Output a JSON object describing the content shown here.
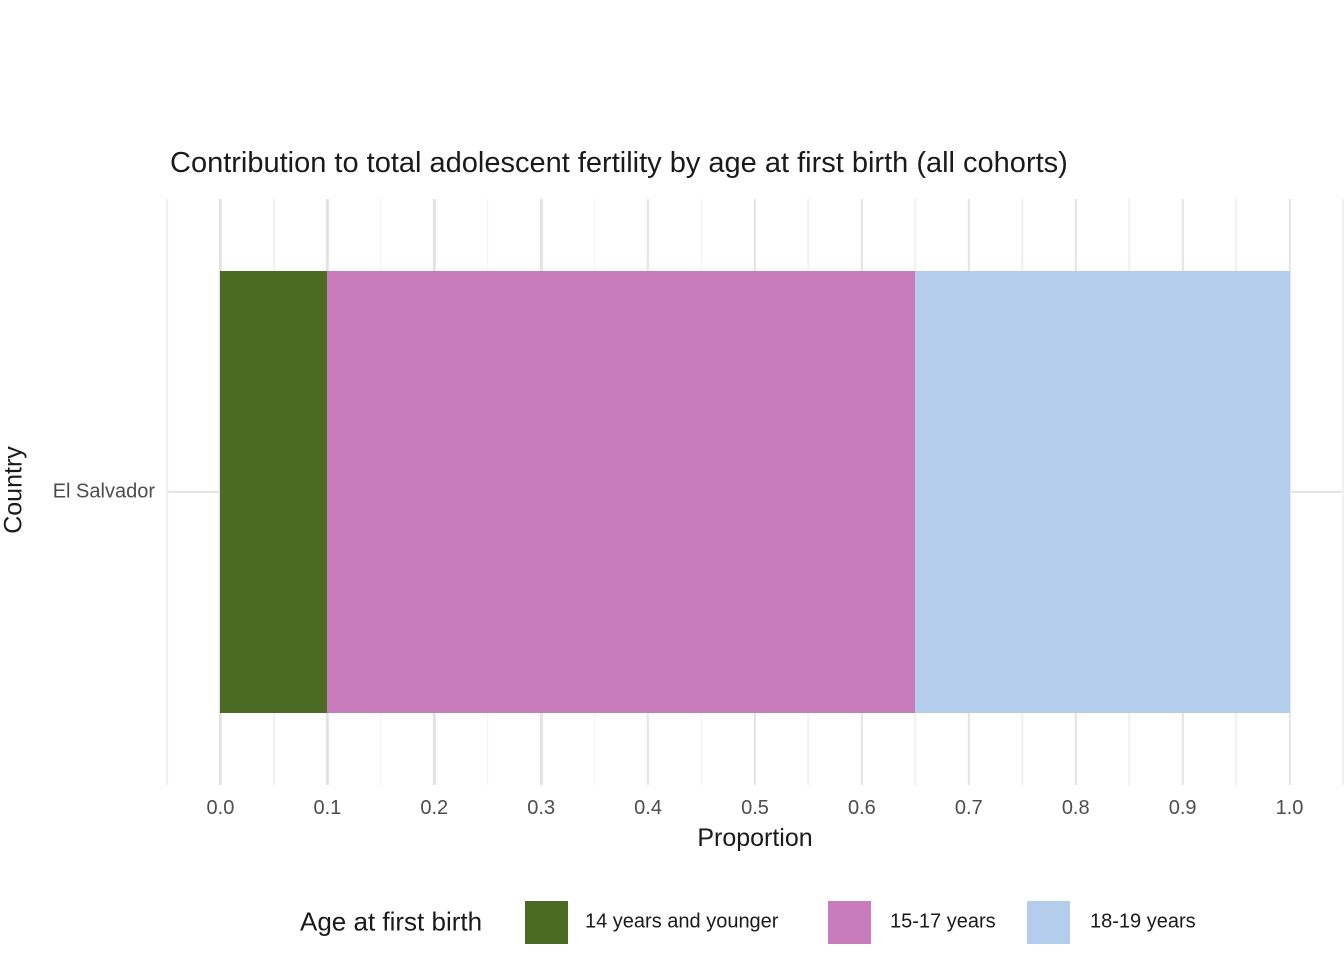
{
  "title": "Contribution to total adolescent fertility by age at first birth (all cohorts)",
  "axes": {
    "x": {
      "label": "Proportion",
      "tick_labels": [
        "0.0",
        "0.1",
        "0.2",
        "0.3",
        "0.4",
        "0.5",
        "0.6",
        "0.7",
        "0.8",
        "0.9",
        "1.0"
      ],
      "range_shown": [
        -0.05,
        1.05
      ]
    },
    "y": {
      "label": "Country",
      "categories": [
        "El Salvador"
      ]
    }
  },
  "legend": {
    "title": "Age at first birth",
    "items": [
      {
        "label": "14 years and younger",
        "color": "#4c6b22"
      },
      {
        "label": "15-17 years",
        "color": "#c87cbc"
      },
      {
        "label": "18-19 years",
        "color": "#b5cdec"
      }
    ]
  },
  "colors": {
    "background": "#ffffff",
    "grid_major": "#e3e3e3",
    "grid_minor": "#f0f0f0",
    "tick_text": "#4d4d4d",
    "text": "#1a1a1a"
  },
  "chart_data": {
    "type": "bar",
    "orientation": "horizontal",
    "stacked": true,
    "title": "Contribution to total adolescent fertility by age at first birth (all cohorts)",
    "xlabel": "Proportion",
    "ylabel": "Country",
    "categories": [
      "El Salvador"
    ],
    "series": [
      {
        "name": "14 years and younger",
        "values": [
          0.1
        ],
        "color": "#4c6b22"
      },
      {
        "name": "15-17 years",
        "values": [
          0.55
        ],
        "color": "#c87cbc"
      },
      {
        "name": "18-19 years",
        "values": [
          0.35
        ],
        "color": "#b5cdec"
      }
    ],
    "xlim": [
      0,
      1
    ],
    "x_breaks": [
      0.0,
      0.1,
      0.2,
      0.3,
      0.4,
      0.5,
      0.6,
      0.7,
      0.8,
      0.9,
      1.0
    ],
    "x_minor_breaks_step": 0.05,
    "grid": true,
    "legend_position": "bottom",
    "legend_title": "Age at first birth"
  }
}
